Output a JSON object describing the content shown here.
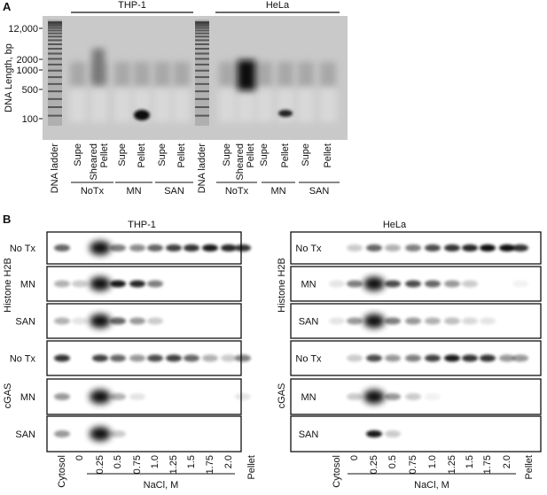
{
  "panel_a": {
    "label": "A",
    "cell_lines": [
      "THP-1",
      "HeLa"
    ],
    "y_axis_label": "DNA Length, bp",
    "size_markers": [
      "12,000",
      "2000",
      "1000",
      "500",
      "100"
    ],
    "lanes": [
      [
        "DNA ladder"
      ],
      [
        "Supe"
      ],
      [
        "Sheared",
        "Pellet"
      ],
      [
        "Supe"
      ],
      [
        "Pellet"
      ],
      [
        "Supe"
      ],
      [
        "Pellet"
      ],
      [
        "DNA ladder"
      ],
      [
        "Supe"
      ],
      [
        "Sheared",
        "Pellet"
      ],
      [
        "Supe"
      ],
      [
        "Pellet"
      ],
      [
        "Supe"
      ],
      [
        "Pellet"
      ]
    ],
    "groups": [
      "NoTx",
      "MN",
      "SAN",
      "NoTx",
      "MN",
      "SAN"
    ]
  },
  "panel_b": {
    "label": "B",
    "cell_lines": [
      "THP-1",
      "HeLa"
    ],
    "proteins": [
      "Histone H2B",
      "cGAS"
    ],
    "treatments": [
      "No Tx",
      "MN",
      "SAN"
    ],
    "lanes": [
      "Cytosol",
      "0",
      "0.25",
      "0.5",
      "0.75",
      "1.0",
      "1.25",
      "1.5",
      "1.75",
      "2.0",
      "Pellet"
    ],
    "salt_label": "NaCl, M"
  }
}
